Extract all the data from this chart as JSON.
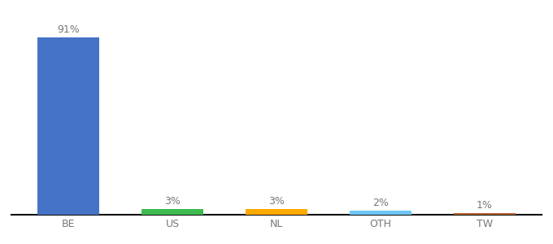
{
  "categories": [
    "BE",
    "US",
    "NL",
    "OTH",
    "TW"
  ],
  "values": [
    91,
    3,
    3,
    2,
    1
  ],
  "labels": [
    "91%",
    "3%",
    "3%",
    "2%",
    "1%"
  ],
  "bar_colors": [
    "#4472c4",
    "#3dba4e",
    "#ffaa00",
    "#6ec6f5",
    "#b5622b"
  ],
  "ylim": [
    0,
    100
  ],
  "background_color": "#ffffff",
  "label_fontsize": 9,
  "tick_fontsize": 9,
  "figsize": [
    6.8,
    3.0
  ],
  "dpi": 100
}
